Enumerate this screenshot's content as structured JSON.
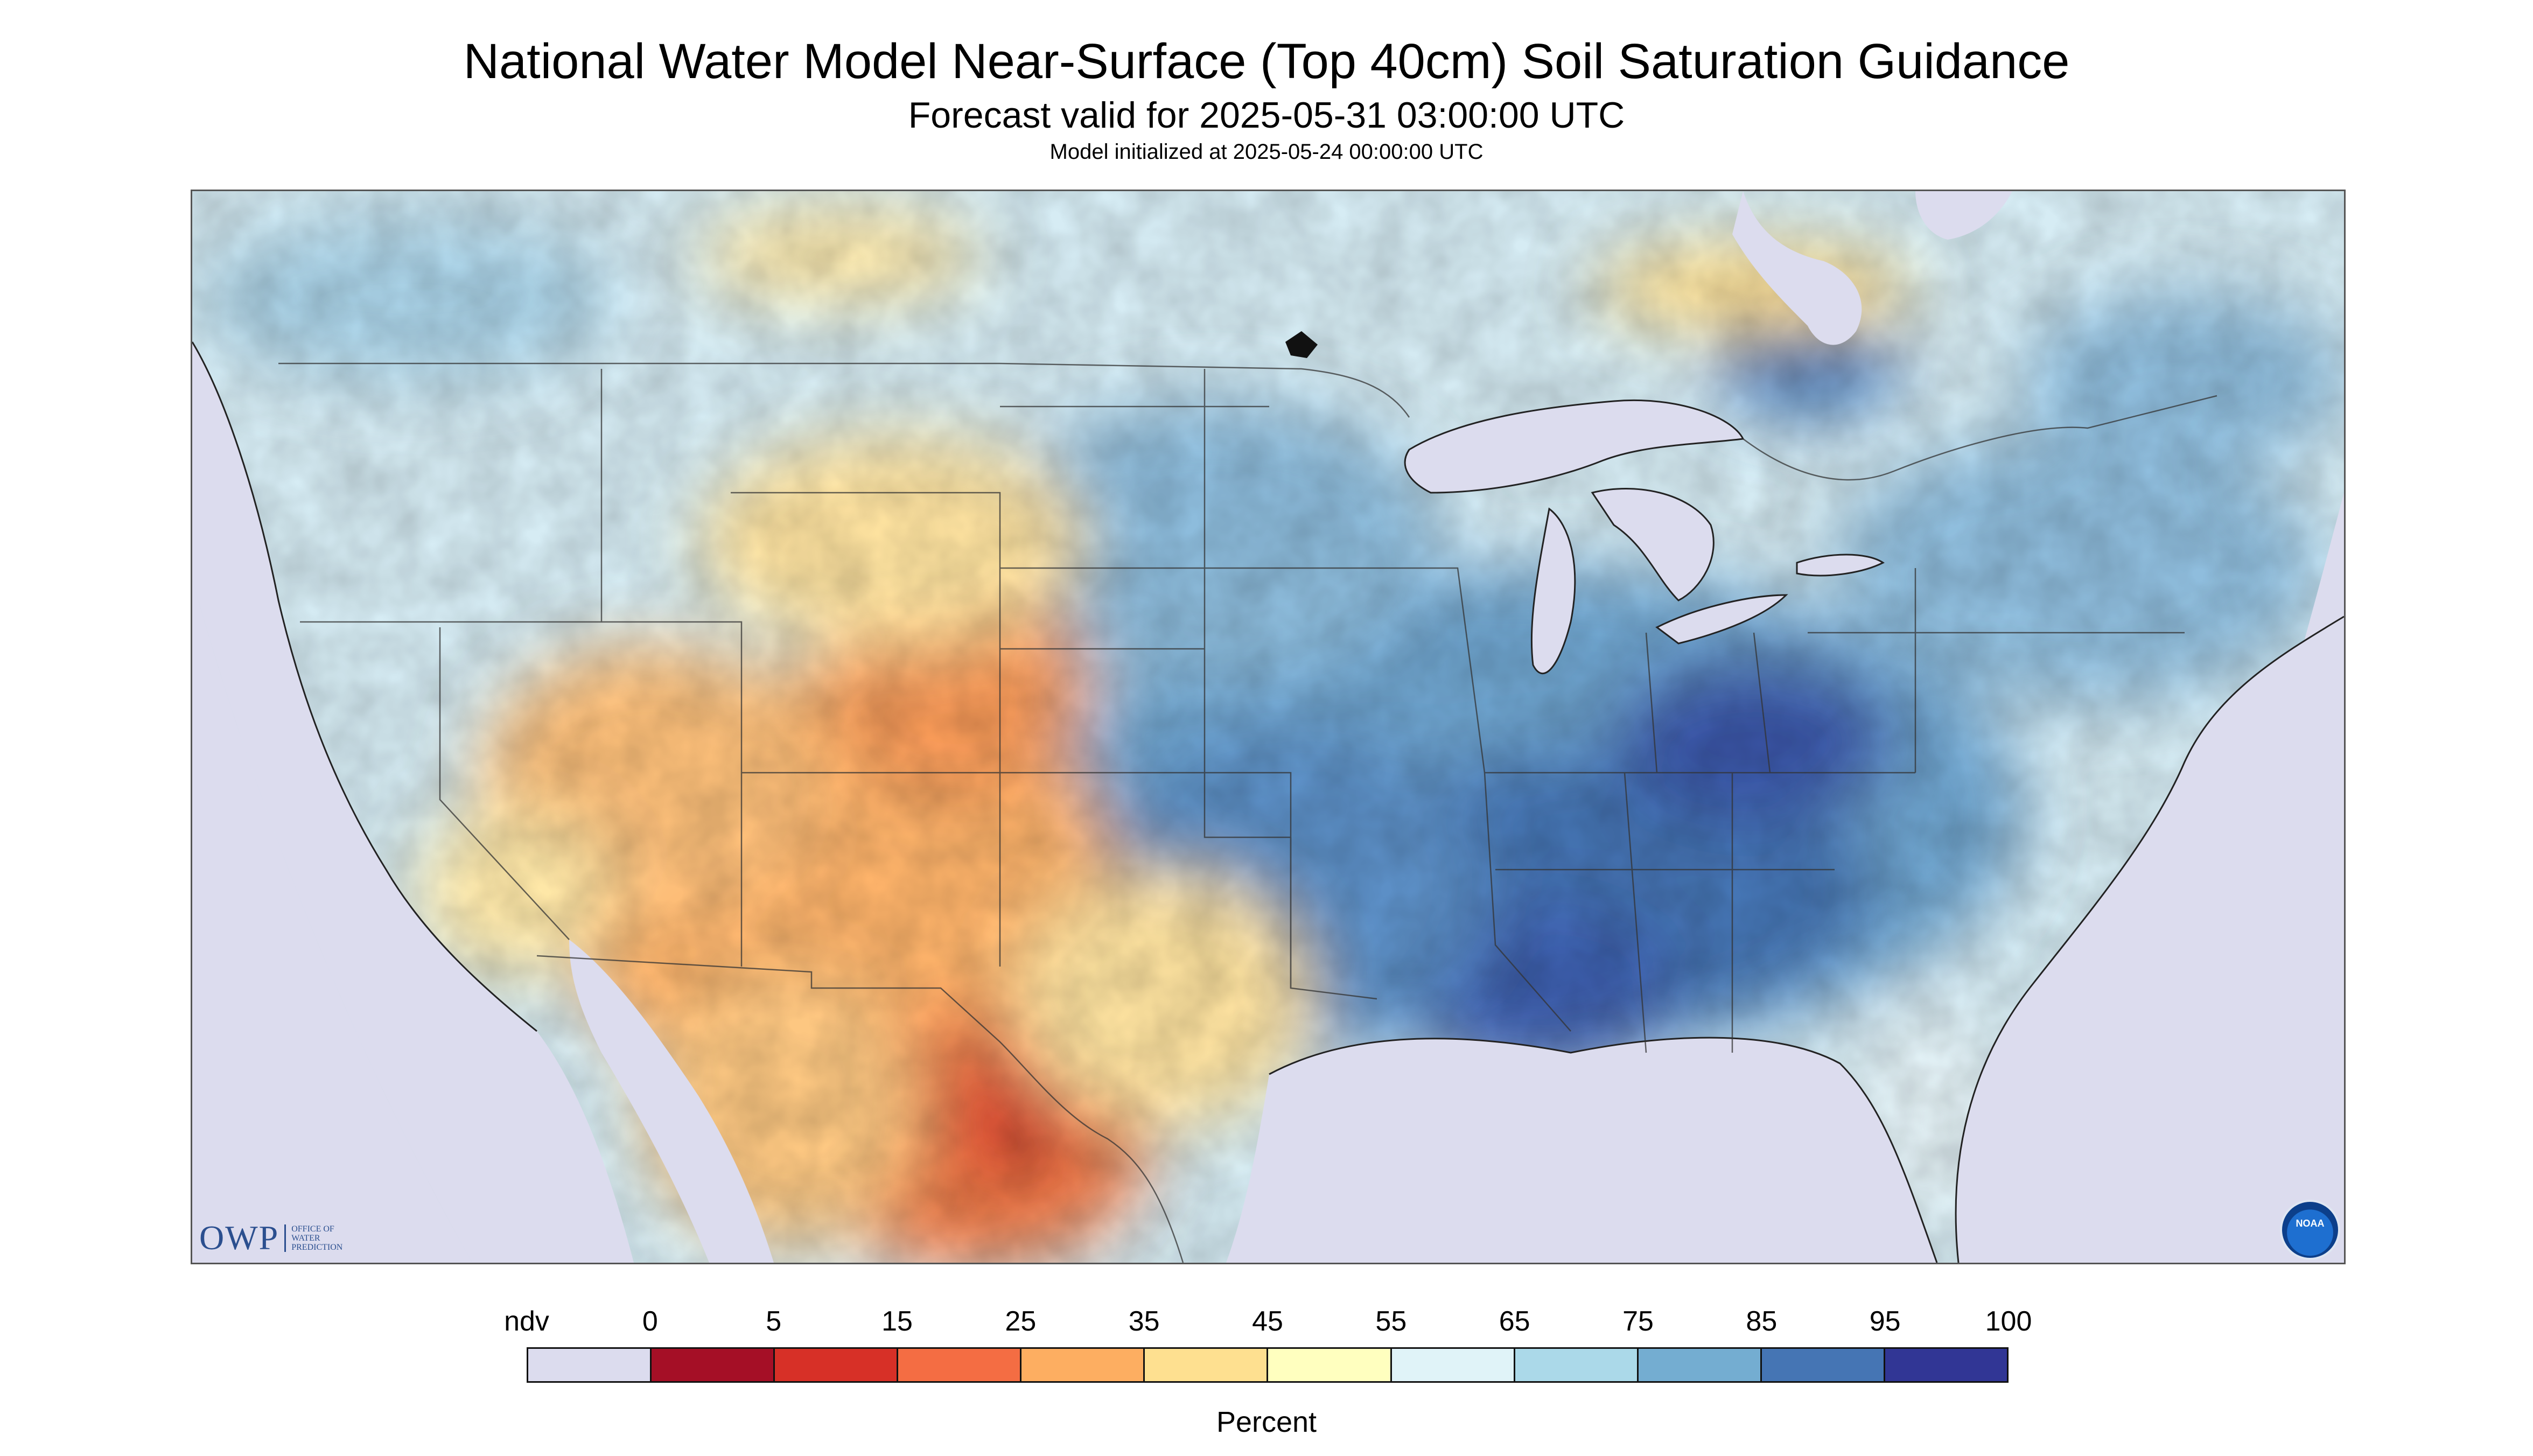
{
  "title": "National Water Model Near-Surface (Top 40cm) Soil Saturation Guidance",
  "subtitle": "Forecast valid for 2025-05-31 03:00:00 UTC",
  "model_init": "Model initialized at 2025-05-24 00:00:00 UTC",
  "legend": {
    "title": "Percent",
    "labels": [
      "ndv",
      "0",
      "5",
      "15",
      "25",
      "35",
      "45",
      "55",
      "65",
      "75",
      "85",
      "95",
      "100"
    ],
    "colors": [
      "#dcdcee",
      "#a50f26",
      "#d73027",
      "#f46d43",
      "#fdae61",
      "#fee090",
      "#ffffbf",
      "#e0f3f8",
      "#abd9e9",
      "#74add1",
      "#4575b4",
      "#313695"
    ]
  },
  "logos": {
    "owp_letters": "OWP",
    "owp_sub": [
      "OFFICE OF",
      "WATER",
      "PREDICTION"
    ],
    "noaa_text": "NOAA"
  }
}
